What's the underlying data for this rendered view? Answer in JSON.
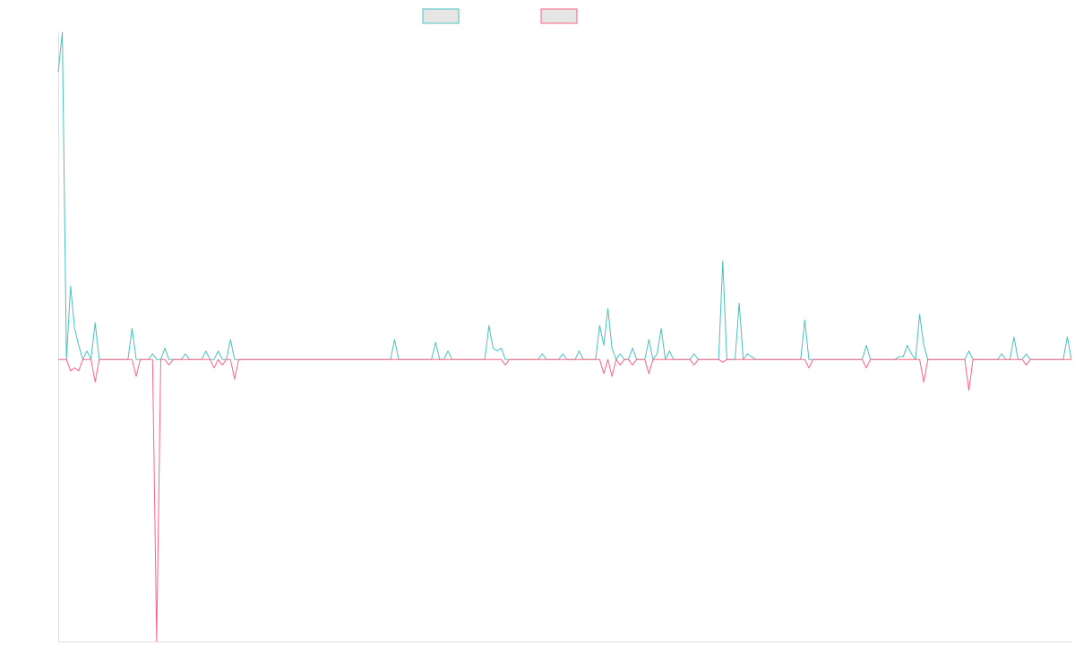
{
  "colors": {
    "series_a": "#4bc0c0",
    "series_b": "#ff6384",
    "legend_fill": "#e6e6e6",
    "axis": "#e0e0e0",
    "background": "#ffffff"
  },
  "chart_data": {
    "type": "line",
    "title": "",
    "xlabel": "",
    "ylabel": "",
    "grid": false,
    "legend_position": "top-center",
    "ylim": [
      -100,
      116
    ],
    "x_count": 248,
    "series": [
      {
        "color": "#4bc0c0",
        "sign": 1,
        "peaks": [
          [
            0,
            102
          ],
          [
            1,
            116
          ],
          [
            2,
            0
          ],
          [
            3,
            26
          ],
          [
            4,
            11
          ],
          [
            5,
            5
          ],
          [
            6,
            0
          ],
          [
            7,
            3
          ],
          [
            8,
            0
          ],
          [
            9,
            13
          ],
          [
            10,
            0
          ],
          [
            18,
            11
          ],
          [
            19,
            0
          ],
          [
            23,
            2
          ],
          [
            24,
            0
          ],
          [
            26,
            4
          ],
          [
            27,
            0
          ],
          [
            31,
            2
          ],
          [
            32,
            0
          ],
          [
            36,
            3
          ],
          [
            37,
            0
          ],
          [
            39,
            3
          ],
          [
            40,
            0
          ],
          [
            42,
            7
          ],
          [
            43,
            0
          ],
          [
            82,
            7
          ],
          [
            83,
            0
          ],
          [
            92,
            6
          ],
          [
            93,
            0
          ],
          [
            95,
            3
          ],
          [
            96,
            0
          ],
          [
            105,
            12
          ],
          [
            106,
            4
          ],
          [
            107,
            3
          ],
          [
            108,
            4
          ],
          [
            109,
            0
          ],
          [
            118,
            2
          ],
          [
            119,
            0
          ],
          [
            123,
            2
          ],
          [
            124,
            0
          ],
          [
            127,
            3
          ],
          [
            128,
            0
          ],
          [
            132,
            12
          ],
          [
            133,
            5
          ],
          [
            134,
            18
          ],
          [
            135,
            4
          ],
          [
            136,
            0
          ],
          [
            137,
            2
          ],
          [
            138,
            0
          ],
          [
            140,
            4
          ],
          [
            141,
            0
          ],
          [
            144,
            7
          ],
          [
            145,
            0
          ],
          [
            146,
            2
          ],
          [
            147,
            11
          ],
          [
            148,
            0
          ],
          [
            149,
            3
          ],
          [
            150,
            0
          ],
          [
            155,
            2
          ],
          [
            156,
            0
          ],
          [
            162,
            35
          ],
          [
            163,
            0
          ],
          [
            166,
            20
          ],
          [
            167,
            0
          ],
          [
            168,
            2
          ],
          [
            169,
            1
          ],
          [
            170,
            0
          ],
          [
            182,
            14
          ],
          [
            183,
            0
          ],
          [
            197,
            5
          ],
          [
            198,
            0
          ],
          [
            205,
            1
          ],
          [
            206,
            1
          ],
          [
            207,
            5
          ],
          [
            208,
            2
          ],
          [
            209,
            0
          ],
          [
            210,
            16
          ],
          [
            211,
            5
          ],
          [
            212,
            0
          ],
          [
            222,
            3
          ],
          [
            223,
            0
          ],
          [
            230,
            2
          ],
          [
            231,
            0
          ],
          [
            233,
            8
          ],
          [
            234,
            0
          ],
          [
            236,
            2
          ],
          [
            237,
            0
          ],
          [
            246,
            8
          ],
          [
            247,
            0
          ]
        ]
      },
      {
        "color": "#ff6384",
        "sign": -1,
        "peaks": [
          [
            2,
            0
          ],
          [
            3,
            4
          ],
          [
            4,
            3
          ],
          [
            5,
            4
          ],
          [
            6,
            0
          ],
          [
            8,
            0
          ],
          [
            9,
            8
          ],
          [
            10,
            0
          ],
          [
            18,
            0
          ],
          [
            19,
            6
          ],
          [
            20,
            0
          ],
          [
            23,
            0
          ],
          [
            24,
            100
          ],
          [
            25,
            0
          ],
          [
            26,
            0
          ],
          [
            27,
            2
          ],
          [
            28,
            0
          ],
          [
            38,
            3
          ],
          [
            39,
            0
          ],
          [
            40,
            2
          ],
          [
            41,
            0
          ],
          [
            42,
            0
          ],
          [
            43,
            7
          ],
          [
            44,
            0
          ],
          [
            109,
            2
          ],
          [
            110,
            0
          ],
          [
            132,
            0
          ],
          [
            133,
            5
          ],
          [
            134,
            0
          ],
          [
            135,
            6
          ],
          [
            136,
            0
          ],
          [
            137,
            2
          ],
          [
            138,
            0
          ],
          [
            140,
            2
          ],
          [
            141,
            0
          ],
          [
            143,
            0
          ],
          [
            144,
            5
          ],
          [
            145,
            0
          ],
          [
            155,
            2
          ],
          [
            156,
            0
          ],
          [
            161,
            0
          ],
          [
            162,
            1
          ],
          [
            163,
            0
          ],
          [
            182,
            0
          ],
          [
            183,
            3
          ],
          [
            184,
            0
          ],
          [
            197,
            3
          ],
          [
            198,
            0
          ],
          [
            210,
            0
          ],
          [
            211,
            8
          ],
          [
            212,
            0
          ],
          [
            221,
            0
          ],
          [
            222,
            11
          ],
          [
            223,
            0
          ],
          [
            236,
            2
          ],
          [
            237,
            0
          ]
        ]
      }
    ]
  }
}
